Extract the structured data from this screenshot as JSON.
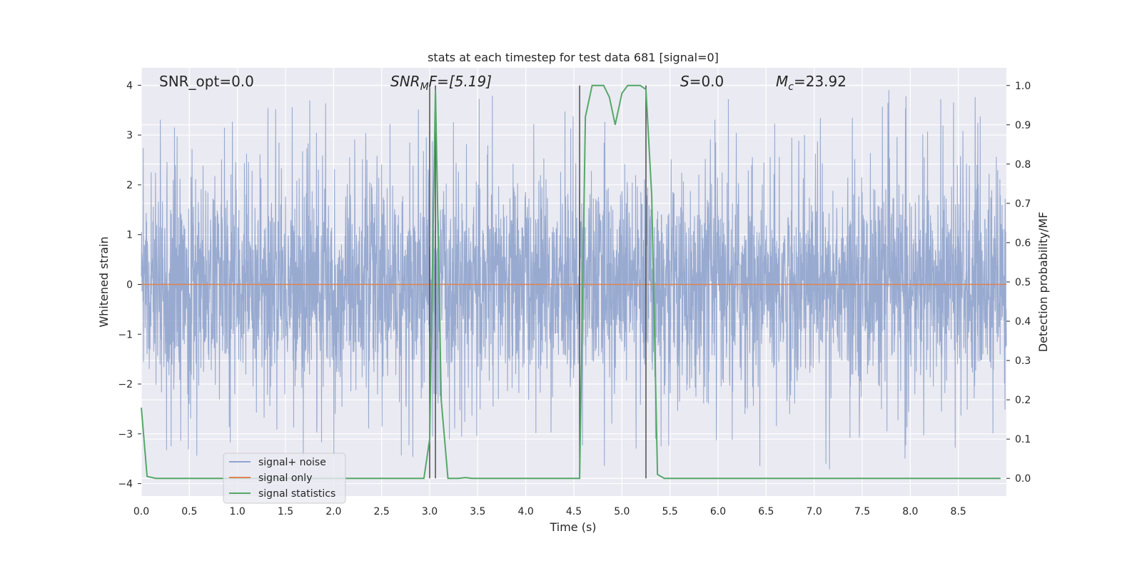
{
  "chart_data": {
    "type": "line",
    "title": "stats at each timestep for test data 681 [signal=0]",
    "xlabel": "Time (s)",
    "ylabel_left": "Whitened strain",
    "ylabel_right": "Detection probability/MF",
    "xlim": [
      0.0,
      9.0
    ],
    "ylim_left": [
      -4.25,
      4.35
    ],
    "ylim_right": [
      -0.045,
      1.045
    ],
    "x_ticks": [
      0.0,
      0.5,
      1.0,
      1.5,
      2.0,
      2.5,
      3.0,
      3.5,
      4.0,
      4.5,
      5.0,
      5.5,
      6.0,
      6.5,
      7.0,
      7.5,
      8.0,
      8.5
    ],
    "x_tick_labels": [
      "0.0",
      "0.5",
      "1.0",
      "1.5",
      "2.0",
      "2.5",
      "3.0",
      "3.5",
      "4.0",
      "4.5",
      "5.0",
      "5.5",
      "6.0",
      "6.5",
      "7.0",
      "7.5",
      "8.0",
      "8.5"
    ],
    "y_left_ticks": [
      4,
      3,
      2,
      1,
      0,
      -1,
      -2,
      -3,
      -4
    ],
    "y_left_tick_labels": [
      "4",
      "3",
      "2",
      "1",
      "0",
      "−1",
      "−2",
      "−3",
      "−4"
    ],
    "y_right_ticks": [
      1.0,
      0.9,
      0.8,
      0.7,
      0.6,
      0.5,
      0.4,
      0.3,
      0.2,
      0.1,
      0.0
    ],
    "y_right_tick_labels": [
      "1.0",
      "0.9",
      "0.8",
      "0.7",
      "0.6",
      "0.5",
      "0.4",
      "0.3",
      "0.2",
      "0.1",
      "0.0"
    ],
    "grid": true,
    "legend_position": "lower-left",
    "annotations": {
      "snr_opt": "SNR_opt=0.0",
      "snr_mf_main": "SNR",
      "snr_mf_sub": "M",
      "snr_mf_rest": "F=[5.19]",
      "s_main": "S",
      "s_rest": "=0.0",
      "mc_main": "M",
      "mc_sub": "c",
      "mc_rest": "=23.92"
    },
    "series": [
      {
        "name": "signal+ noise",
        "color": "#8fa3cc",
        "axis": "left",
        "kind": "noise",
        "duration": 9.0,
        "typical_amplitude": 1.7,
        "peak_amplitude": 4.0
      },
      {
        "name": "signal only",
        "color": "#dd8452",
        "axis": "left",
        "x": [
          0.0,
          9.0
        ],
        "y": [
          0.0,
          0.0
        ]
      },
      {
        "name": "signal statistics",
        "color": "#55a868",
        "axis": "right",
        "x": [
          0.0,
          0.06,
          0.15,
          0.5,
          1.0,
          1.5,
          2.0,
          2.5,
          2.94,
          3.0,
          3.06,
          3.12,
          3.19,
          3.3,
          3.37,
          3.44,
          4.5,
          4.56,
          4.62,
          4.69,
          4.75,
          4.81,
          4.87,
          4.93,
          5.0,
          5.06,
          5.12,
          5.19,
          5.25,
          5.31,
          5.37,
          5.44,
          6.0,
          7.0,
          8.0,
          8.94
        ],
        "y": [
          0.18,
          0.005,
          0.0,
          0.0,
          0.0,
          0.0,
          0.0,
          0.0,
          0.0,
          0.1,
          0.99,
          0.2,
          0.0,
          0.0,
          0.002,
          0.0,
          0.0,
          0.0,
          0.92,
          1.0,
          1.0,
          1.0,
          0.97,
          0.9,
          0.98,
          1.0,
          1.0,
          1.0,
          0.99,
          0.72,
          0.01,
          0.0,
          0.0,
          0.0,
          0.0,
          0.0
        ]
      }
    ],
    "vertical_markers": [
      {
        "x": 3.0,
        "y_top": 1.0,
        "y_bottom": 0.0
      },
      {
        "x": 3.06,
        "y_top": 1.0,
        "y_bottom": 0.0
      },
      {
        "x": 4.56,
        "y_top": 1.0,
        "y_bottom": 0.0
      },
      {
        "x": 5.25,
        "y_top": 1.0,
        "y_bottom": 0.0
      }
    ],
    "marker_color": "#4d4d4d"
  }
}
